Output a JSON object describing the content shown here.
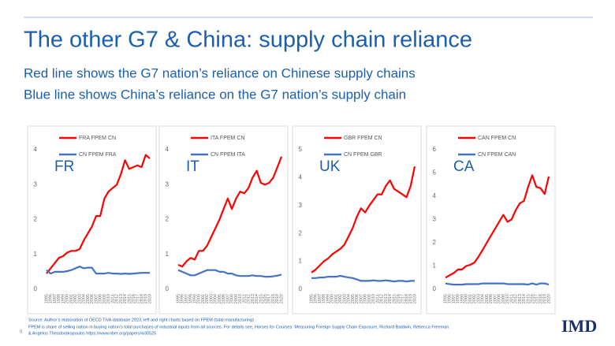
{
  "slide": {
    "title": "The other G7 & China: supply chain reliance",
    "subtitle_1": "Red line shows the G7 nation’s reliance on Chinese supply chains",
    "subtitle_2": "Blue line shows China’s reliance on the G7 nation’s supply chain",
    "page_number": "6",
    "source": "Source: Author’s elaboration of OECD TiVA database 2023, left and right charts based on FPEM  (total manufacturing)",
    "note": "FPEM is share of selling nation in buying nation’s total purchases of industrial inputs from all sources. For details see, Horses for Courses: Measuring Foreign Supply Chain Exposure, Richard Baldwin, Rebecca Freeman",
    "note_2": "& Angelos Theodorakopoulos https://www.nber.org/papers/w30525",
    "logo": "IMD"
  },
  "chart_data": [
    {
      "type": "line",
      "annotation": "FR",
      "categories": [
        "1995",
        "1996",
        "1997",
        "1998",
        "1999",
        "2000",
        "2001",
        "2002",
        "2003",
        "2004",
        "2005",
        "2006",
        "2007",
        "2008",
        "2009",
        "2010",
        "2011",
        "2012",
        "2013",
        "2014",
        "2015",
        "2016",
        "2017",
        "2018",
        "2019",
        "2020"
      ],
      "series": [
        {
          "name": "FRA FPEM CN",
          "color": "#ff0000",
          "values": [
            0.45,
            0.6,
            0.75,
            0.9,
            0.95,
            1.05,
            1.1,
            1.1,
            1.15,
            1.4,
            1.6,
            1.8,
            2.1,
            2.1,
            2.6,
            2.8,
            2.9,
            3.0,
            3.3,
            3.7,
            3.45,
            3.5,
            3.55,
            3.5,
            3.85,
            3.75
          ]
        },
        {
          "name": "CN FPEM FRA",
          "color": "#4472c4",
          "values": [
            0.55,
            0.45,
            0.5,
            0.5,
            0.5,
            0.52,
            0.55,
            0.6,
            0.65,
            0.6,
            0.62,
            0.62,
            0.45,
            0.45,
            0.45,
            0.47,
            0.45,
            0.45,
            0.44,
            0.45,
            0.44,
            0.45,
            0.46,
            0.47,
            0.47,
            0.47
          ]
        }
      ],
      "ylim": [
        0,
        4
      ],
      "yticks": [
        0,
        1,
        2,
        3,
        4
      ]
    },
    {
      "type": "line",
      "annotation": "IT",
      "categories": [
        "1995",
        "1996",
        "1997",
        "1998",
        "1999",
        "2000",
        "2001",
        "2002",
        "2003",
        "2004",
        "2005",
        "2006",
        "2007",
        "2008",
        "2009",
        "2010",
        "2011",
        "2012",
        "2013",
        "2014",
        "2015",
        "2016",
        "2017",
        "2018",
        "2019",
        "2020"
      ],
      "series": [
        {
          "name": "ITA FPEM CN",
          "color": "#ff0000",
          "values": [
            0.7,
            0.65,
            0.8,
            0.9,
            0.85,
            1.1,
            1.1,
            1.25,
            1.5,
            1.75,
            2.0,
            2.3,
            2.6,
            2.3,
            2.6,
            2.8,
            2.75,
            2.9,
            3.2,
            3.4,
            3.05,
            3.0,
            3.05,
            3.2,
            3.5,
            3.8
          ]
        },
        {
          "name": "CN FPEM ITA",
          "color": "#4472c4",
          "values": [
            0.55,
            0.5,
            0.45,
            0.4,
            0.4,
            0.45,
            0.5,
            0.55,
            0.55,
            0.55,
            0.5,
            0.5,
            0.45,
            0.45,
            0.4,
            0.38,
            0.38,
            0.38,
            0.4,
            0.38,
            0.38,
            0.36,
            0.36,
            0.37,
            0.39,
            0.42
          ]
        }
      ],
      "ylim": [
        0,
        4
      ],
      "yticks": [
        0,
        1,
        2,
        3,
        4
      ]
    },
    {
      "type": "line",
      "annotation": "UK",
      "categories": [
        "1995",
        "1996",
        "1997",
        "1998",
        "1999",
        "2000",
        "2001",
        "2002",
        "2003",
        "2004",
        "2005",
        "2006",
        "2007",
        "2008",
        "2009",
        "2010",
        "2011",
        "2012",
        "2013",
        "2014",
        "2015",
        "2016",
        "2017",
        "2018",
        "2019",
        "2020"
      ],
      "series": [
        {
          "name": "GBR FPEM CN",
          "color": "#ff0000",
          "values": [
            0.6,
            0.7,
            0.85,
            1.0,
            1.1,
            1.25,
            1.35,
            1.45,
            1.6,
            1.9,
            2.2,
            2.6,
            2.9,
            2.75,
            3.0,
            3.2,
            3.4,
            3.4,
            3.7,
            3.9,
            3.6,
            3.5,
            3.4,
            3.3,
            3.7,
            4.4
          ]
        },
        {
          "name": "CN FPEM GBR",
          "color": "#4472c4",
          "values": [
            0.4,
            0.4,
            0.42,
            0.42,
            0.45,
            0.45,
            0.45,
            0.48,
            0.45,
            0.42,
            0.4,
            0.35,
            0.3,
            0.3,
            0.3,
            0.32,
            0.3,
            0.3,
            0.32,
            0.3,
            0.28,
            0.3,
            0.3,
            0.28,
            0.3,
            0.3
          ]
        }
      ],
      "ylim": [
        0,
        5
      ],
      "yticks": [
        0,
        1,
        2,
        3,
        4,
        5
      ]
    },
    {
      "type": "line",
      "annotation": "CA",
      "categories": [
        "1995",
        "1996",
        "1997",
        "1998",
        "1999",
        "2000",
        "2001",
        "2002",
        "2003",
        "2004",
        "2005",
        "2006",
        "2007",
        "2008",
        "2009",
        "2010",
        "2011",
        "2012",
        "2013",
        "2014",
        "2015",
        "2016",
        "2017",
        "2018",
        "2019",
        "2020"
      ],
      "series": [
        {
          "name": "CAN FPEM CN",
          "color": "#ff0000",
          "values": [
            0.5,
            0.6,
            0.7,
            0.85,
            0.85,
            1.0,
            1.05,
            1.15,
            1.4,
            1.7,
            2.0,
            2.3,
            2.6,
            2.9,
            3.2,
            2.9,
            3.0,
            3.4,
            3.7,
            3.8,
            4.4,
            4.9,
            4.4,
            4.35,
            4.1,
            4.85
          ]
        },
        {
          "name": "CN FPEM CAN",
          "color": "#4472c4",
          "values": [
            0.25,
            0.22,
            0.2,
            0.2,
            0.2,
            0.22,
            0.22,
            0.22,
            0.22,
            0.25,
            0.25,
            0.25,
            0.25,
            0.25,
            0.25,
            0.22,
            0.22,
            0.22,
            0.22,
            0.22,
            0.2,
            0.25,
            0.2,
            0.25,
            0.25,
            0.2
          ]
        }
      ],
      "ylim": [
        0,
        6
      ],
      "yticks": [
        0,
        1,
        2,
        3,
        4,
        5,
        6
      ]
    }
  ]
}
